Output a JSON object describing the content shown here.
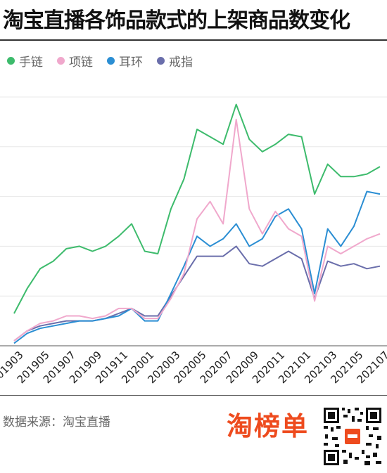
{
  "title": "淘宝直播各饰品款式的上架商品数变化",
  "source_text": "数据来源：淘宝直播",
  "brand_text": "淘榜单",
  "colors": {
    "手链": "#3dbb6c",
    "项链": "#f0a8cc",
    "耳环": "#2b8ed3",
    "戒指": "#6a6eab",
    "brand": "#ee4b1e"
  },
  "chart_data": {
    "type": "line",
    "title": "淘宝直播各饰品款式的上架商品数变化",
    "xlabel": "",
    "ylabel": "",
    "ylim": [
      0,
      100
    ],
    "grid": true,
    "legend_position": "top-left",
    "x": [
      "201903",
      "201904",
      "201905",
      "201906",
      "201907",
      "201908",
      "201909",
      "201910",
      "201911",
      "201912",
      "202001",
      "202002",
      "202003",
      "202004",
      "202005",
      "202006",
      "202007",
      "202008",
      "202009",
      "202010",
      "202011",
      "202012",
      "202101",
      "202102",
      "202103",
      "202104",
      "202105",
      "202106",
      "202107"
    ],
    "x_tick_labels": [
      "201903",
      "201905",
      "201907",
      "201909",
      "201911",
      "202001",
      "202003",
      "202005",
      "202007",
      "202009",
      "202011",
      "202101",
      "202103",
      "202105",
      "202107"
    ],
    "series": [
      {
        "name": "手链",
        "values": [
          13,
          23,
          31,
          34,
          39,
          40,
          38,
          40,
          44,
          49,
          38,
          37,
          55,
          67,
          87,
          84,
          81,
          97,
          83,
          78,
          81,
          85,
          84,
          61,
          73,
          68,
          68,
          69,
          72
        ]
      },
      {
        "name": "项链",
        "values": [
          2,
          6,
          9,
          10,
          12,
          12,
          11,
          12,
          15,
          15,
          11,
          11,
          19,
          29,
          51,
          58,
          49,
          91,
          55,
          45,
          54,
          47,
          44,
          18,
          40,
          37,
          40,
          43,
          45
        ]
      },
      {
        "name": "耳环",
        "values": [
          1,
          5,
          7,
          8,
          9,
          10,
          10,
          11,
          12,
          15,
          10,
          10,
          21,
          32,
          44,
          40,
          43,
          49,
          40,
          43,
          52,
          55,
          47,
          21,
          47,
          40,
          48,
          62,
          61
        ]
      },
      {
        "name": "戒指",
        "values": [
          2,
          6,
          8,
          9,
          10,
          10,
          10,
          11,
          13,
          15,
          12,
          12,
          20,
          28,
          36,
          36,
          36,
          40,
          33,
          32,
          35,
          38,
          35,
          19,
          34,
          32,
          33,
          31,
          32
        ]
      }
    ]
  }
}
